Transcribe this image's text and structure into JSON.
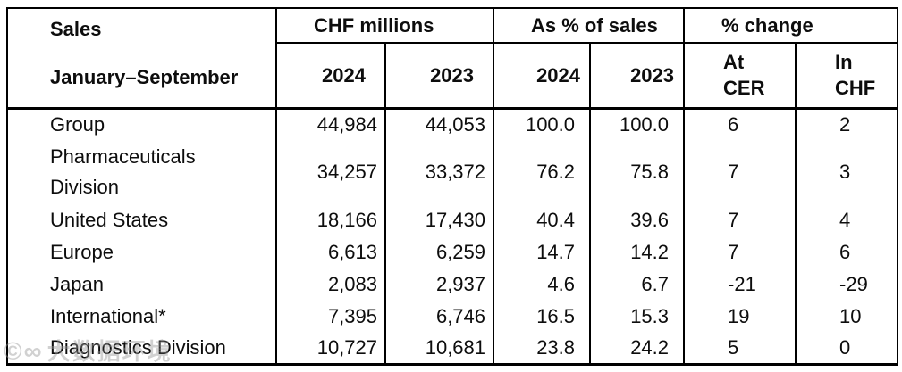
{
  "table": {
    "header": {
      "title": "Sales",
      "period": "January–September",
      "groups": [
        {
          "label": "CHF millions",
          "col1": "2024",
          "col2": "2023"
        },
        {
          "label": "As % of sales",
          "col1": "2024",
          "col2": "2023"
        },
        {
          "label": "% change",
          "col1_line1": "At",
          "col1_line2": "CER",
          "col2_line1": "In",
          "col2_line2": "CHF"
        }
      ]
    },
    "rows": [
      {
        "label": "Group",
        "chf_2024": "44,984",
        "chf_2023": "44,053",
        "pct_2024": "100.0",
        "pct_2023": "100.0",
        "change_at_cer": "6",
        "change_in_chf": "2"
      },
      {
        "label": "Pharmaceuticals Division",
        "chf_2024": "34,257",
        "chf_2023": "33,372",
        "pct_2024": "76.2",
        "pct_2023": "75.8",
        "change_at_cer": "7",
        "change_in_chf": "3"
      },
      {
        "label": "United States",
        "chf_2024": "18,166",
        "chf_2023": "17,430",
        "pct_2024": "40.4",
        "pct_2023": "39.6",
        "change_at_cer": "7",
        "change_in_chf": "4"
      },
      {
        "label": "Europe",
        "chf_2024": "6,613",
        "chf_2023": "6,259",
        "pct_2024": "14.7",
        "pct_2023": "14.2",
        "change_at_cer": "7",
        "change_in_chf": "6"
      },
      {
        "label": "Japan",
        "chf_2024": "2,083",
        "chf_2023": "2,937",
        "pct_2024": "4.6",
        "pct_2023": "6.7",
        "change_at_cer": "-21",
        "change_in_chf": "-29"
      },
      {
        "label": "International*",
        "chf_2024": "7,395",
        "chf_2023": "6,746",
        "pct_2024": "16.5",
        "pct_2023": "15.3",
        "change_at_cer": "19",
        "change_in_chf": "10"
      },
      {
        "label": "Diagnostics Division",
        "chf_2024": "10,727",
        "chf_2023": "10,681",
        "pct_2024": "23.8",
        "pct_2023": "24.2",
        "change_at_cer": "5",
        "change_in_chf": "0"
      }
    ],
    "colors": {
      "border": "#000000",
      "text": "#0d0d0d",
      "background": "#ffffff"
    }
  },
  "watermark": {
    "logo": "©∞",
    "text": "大数据环境"
  }
}
